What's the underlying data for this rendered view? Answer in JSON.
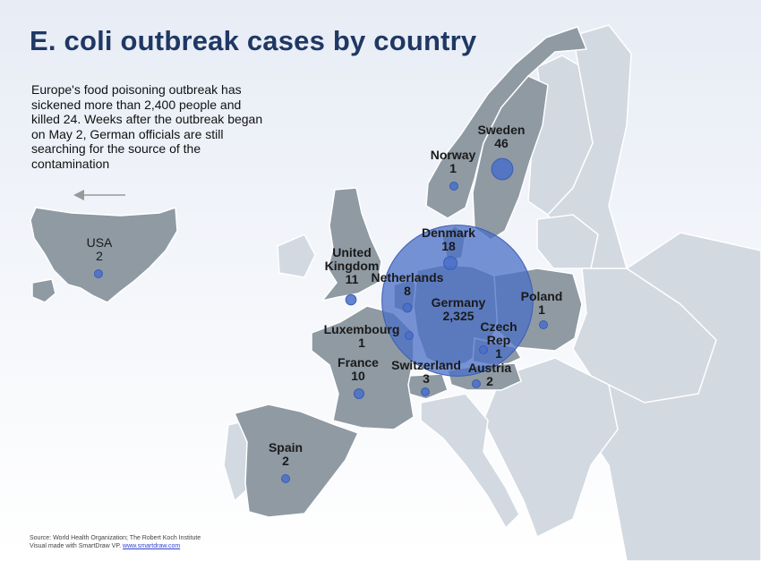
{
  "title": "E. coli outbreak cases by country",
  "subtitle": "Europe's food poisoning outbreak has sickened more than 2,400 people and killed 24. Weeks after the outbreak began on May 2, German officials are still searching for the source of the contamination",
  "colors": {
    "land_highlight": "#8f9aa3",
    "land_other": "#d3d9e1",
    "bubble": "#4a6fc7",
    "title": "#1f3864"
  },
  "countries": [
    {
      "id": "usa",
      "name": "USA",
      "cases": "2",
      "value": 2
    },
    {
      "id": "norway",
      "name": "Norway",
      "cases": "1",
      "value": 1
    },
    {
      "id": "sweden",
      "name": "Sweden",
      "cases": "46",
      "value": 46
    },
    {
      "id": "denmark",
      "name": "Denmark",
      "cases": "18",
      "value": 18
    },
    {
      "id": "uk",
      "name": "United Kingdom",
      "cases": "11",
      "value": 11
    },
    {
      "id": "netherlands",
      "name": "Netherlands",
      "cases": "8",
      "value": 8
    },
    {
      "id": "germany",
      "name": "Germany",
      "cases": "2,325",
      "value": 2325
    },
    {
      "id": "poland",
      "name": "Poland",
      "cases": "1",
      "value": 1
    },
    {
      "id": "luxembourg",
      "name": "Luxembourg",
      "cases": "1",
      "value": 1
    },
    {
      "id": "czech",
      "name": "Czech Rep",
      "cases": "1",
      "value": 1
    },
    {
      "id": "france",
      "name": "France",
      "cases": "10",
      "value": 10
    },
    {
      "id": "switzerland",
      "name": "Switzerland",
      "cases": "3",
      "value": 3
    },
    {
      "id": "austria",
      "name": "Austria",
      "cases": "2",
      "value": 2
    },
    {
      "id": "spain",
      "name": "Spain",
      "cases": "2",
      "value": 2
    }
  ],
  "source": {
    "line1": "Source: World Health Organization; The Robert Koch Institute",
    "line2": "Visual made with SmartDraw VP.",
    "link": "www.smartdraw.com"
  }
}
